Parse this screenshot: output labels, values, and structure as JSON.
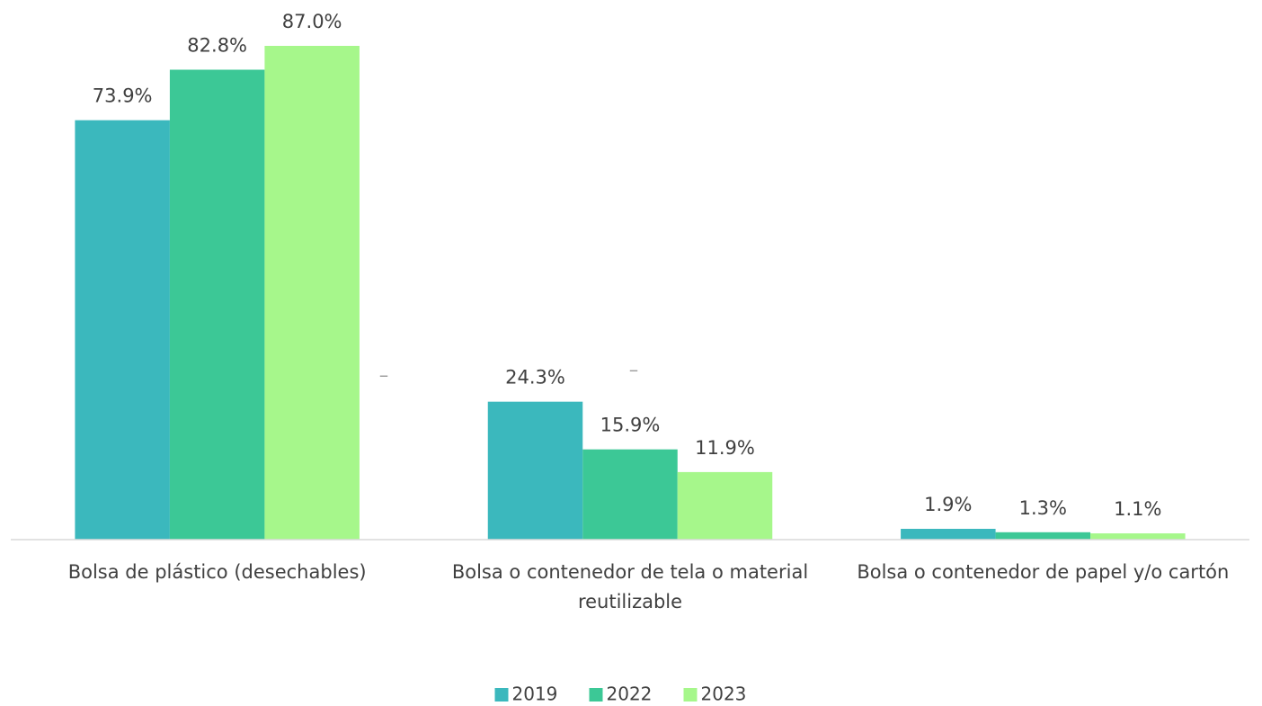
{
  "chart_data": {
    "type": "bar",
    "categories": [
      "Bolsa de plástico (desechables)",
      "Bolsa o contenedor de tela o material reutilizable",
      "Bolsa o contenedor de papel y/o cartón"
    ],
    "series": [
      {
        "name": "2019",
        "color": "#3bb8bd",
        "values": [
          73.9,
          24.3,
          1.9
        ],
        "value_labels": [
          "73.9%",
          "24.3%",
          "1.9%"
        ]
      },
      {
        "name": "2022",
        "color": "#3cc896",
        "values": [
          82.8,
          15.9,
          1.3
        ],
        "value_labels": [
          "82.8%",
          "15.9%",
          "1.3%"
        ]
      },
      {
        "name": "2023",
        "color": "#a6f78b",
        "values": [
          87.0,
          11.9,
          1.1
        ],
        "value_labels": [
          "87.0%",
          "11.9%",
          "1.1%"
        ]
      }
    ],
    "annotations": [
      "–",
      "–"
    ],
    "legend": "bottom"
  }
}
